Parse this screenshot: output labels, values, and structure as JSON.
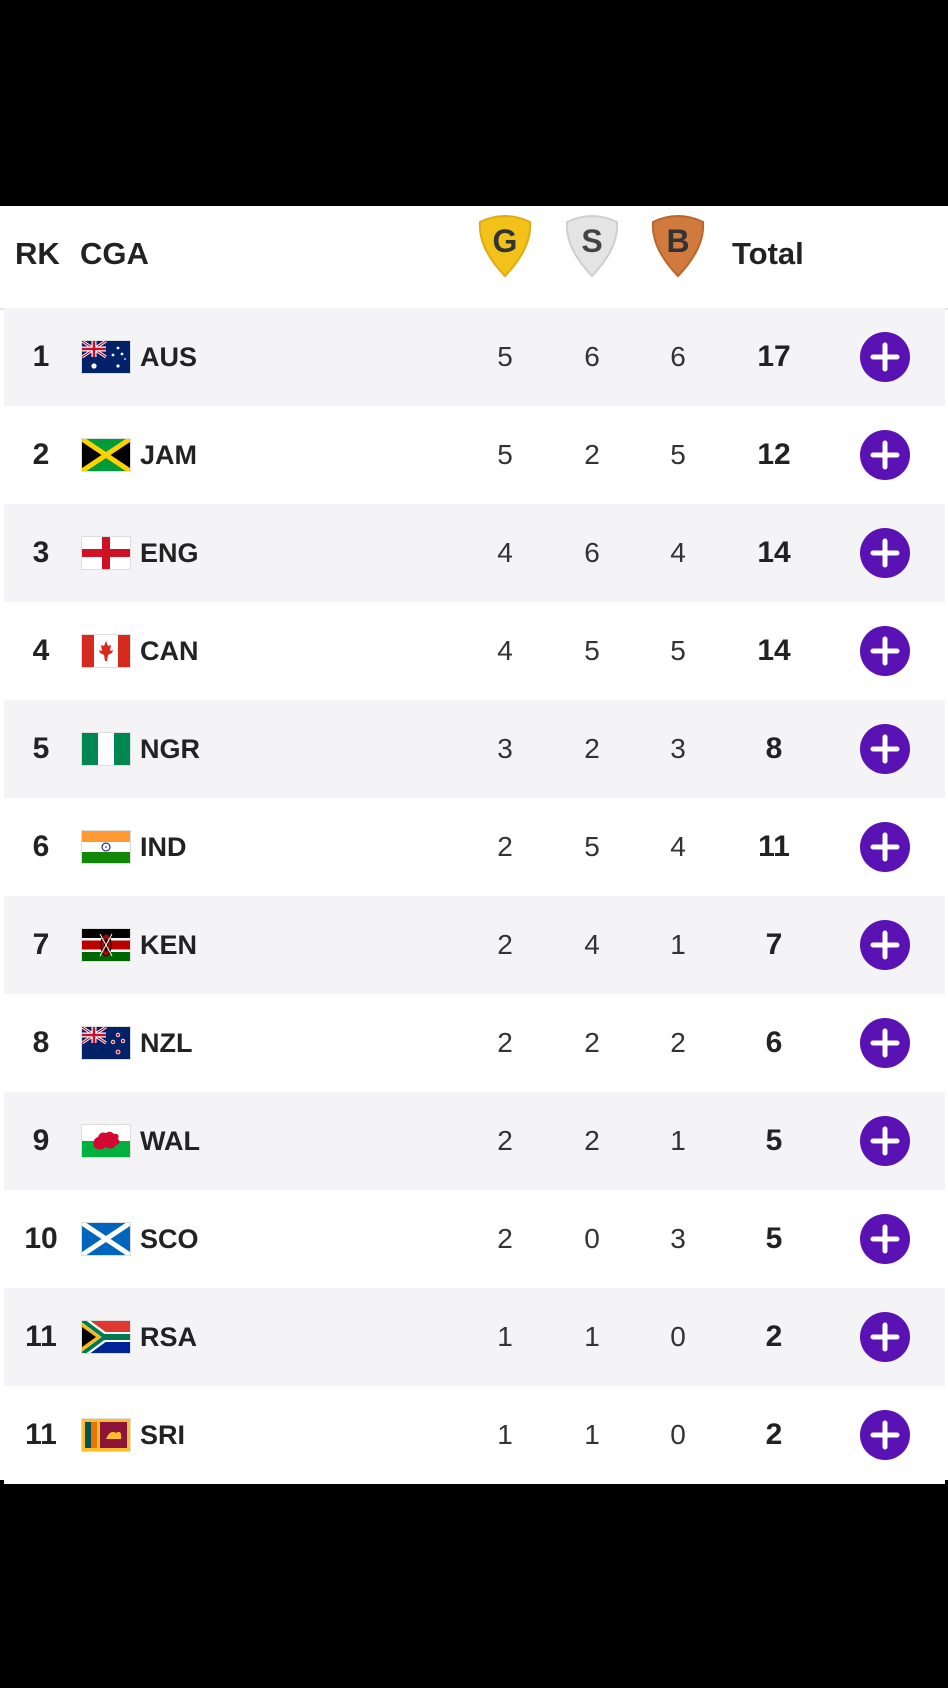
{
  "header": {
    "rank_label": "RK",
    "cga_label": "CGA",
    "gold_label": "G",
    "silver_label": "S",
    "bronze_label": "B",
    "total_label": "Total"
  },
  "colors": {
    "gold": "#f3c21a",
    "silver": "#d9d9d9",
    "bronze": "#d07a3e",
    "plus_button": "#5a12b4"
  },
  "icons": {
    "expand": "plus-icon"
  },
  "rows": [
    {
      "rank": "1",
      "code": "AUS",
      "flag": "australia-flag",
      "gold": "5",
      "silver": "6",
      "bronze": "6",
      "total": "17"
    },
    {
      "rank": "2",
      "code": "JAM",
      "flag": "jamaica-flag",
      "gold": "5",
      "silver": "2",
      "bronze": "5",
      "total": "12"
    },
    {
      "rank": "3",
      "code": "ENG",
      "flag": "england-flag",
      "gold": "4",
      "silver": "6",
      "bronze": "4",
      "total": "14"
    },
    {
      "rank": "4",
      "code": "CAN",
      "flag": "canada-flag",
      "gold": "4",
      "silver": "5",
      "bronze": "5",
      "total": "14"
    },
    {
      "rank": "5",
      "code": "NGR",
      "flag": "nigeria-flag",
      "gold": "3",
      "silver": "2",
      "bronze": "3",
      "total": "8"
    },
    {
      "rank": "6",
      "code": "IND",
      "flag": "india-flag",
      "gold": "2",
      "silver": "5",
      "bronze": "4",
      "total": "11"
    },
    {
      "rank": "7",
      "code": "KEN",
      "flag": "kenya-flag",
      "gold": "2",
      "silver": "4",
      "bronze": "1",
      "total": "7"
    },
    {
      "rank": "8",
      "code": "NZL",
      "flag": "new-zealand-flag",
      "gold": "2",
      "silver": "2",
      "bronze": "2",
      "total": "6"
    },
    {
      "rank": "9",
      "code": "WAL",
      "flag": "wales-flag",
      "gold": "2",
      "silver": "2",
      "bronze": "1",
      "total": "5"
    },
    {
      "rank": "10",
      "code": "SCO",
      "flag": "scotland-flag",
      "gold": "2",
      "silver": "0",
      "bronze": "3",
      "total": "5"
    },
    {
      "rank": "11",
      "code": "RSA",
      "flag": "south-africa-flag",
      "gold": "1",
      "silver": "1",
      "bronze": "0",
      "total": "2"
    },
    {
      "rank": "11",
      "code": "SRI",
      "flag": "sri-lanka-flag",
      "gold": "1",
      "silver": "1",
      "bronze": "0",
      "total": "2"
    }
  ]
}
